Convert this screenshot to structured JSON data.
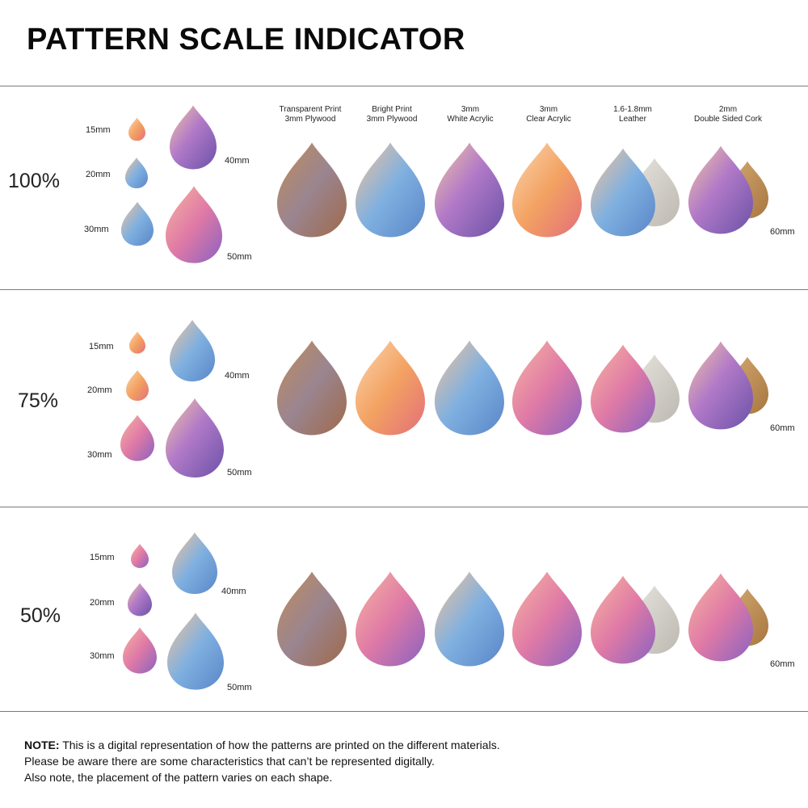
{
  "page": {
    "title": "PATTERN SCALE INDICATOR"
  },
  "materials": [
    {
      "line1": "Transparent Print",
      "line2": "3mm Plywood"
    },
    {
      "line1": "Bright Print",
      "line2": "3mm Plywood"
    },
    {
      "line1": "3mm",
      "line2": "White Acrylic"
    },
    {
      "line1": "3mm",
      "line2": "Clear Acrylic"
    },
    {
      "line1": "1.6-1.8mm",
      "line2": "Leather"
    },
    {
      "line1": "2mm",
      "line2": "Double Sided Cork"
    }
  ],
  "size_labels": {
    "s15": "15mm",
    "s20": "20mm",
    "s30": "30mm",
    "s40": "40mm",
    "s50": "50mm",
    "s60": "60mm"
  },
  "sections": [
    {
      "scale": "100%"
    },
    {
      "scale": "75%"
    },
    {
      "scale": "50%"
    }
  ],
  "note": {
    "label": "NOTE:",
    "line1": "This is a digital representation of how the patterns are printed on the different materials.",
    "line2": "Please be aware there are some characteristics that can’t be represented digitally.",
    "line3": "Also note, the placement of the pattern varies on each shape."
  },
  "colors": {
    "purple": "#9b6bc4",
    "blue": "#6aa3d8",
    "peach": "#f1a76b",
    "pink": "#e07aa6",
    "gold": "#c98a3a",
    "wood": "#8c6a4e",
    "leather_back": "#c9c6bf",
    "cork": "#b78a55"
  }
}
